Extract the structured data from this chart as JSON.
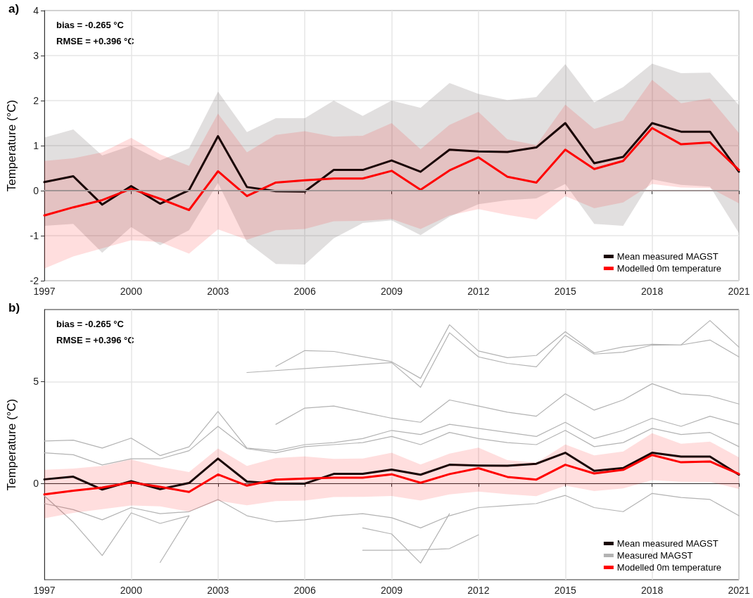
{
  "chart_data": [
    {
      "type": "line",
      "title": "a)",
      "ylabel": "Temperature (°C)",
      "annotations": [
        "bias = -0.265 °C",
        "RMSE = +0.396 °C"
      ],
      "x": [
        1997,
        1998,
        1999,
        2000,
        2001,
        2002,
        2003,
        2004,
        2005,
        2006,
        2007,
        2008,
        2009,
        2010,
        2011,
        2012,
        2013,
        2014,
        2015,
        2016,
        2017,
        2018,
        2019,
        2020,
        2021
      ],
      "series": [
        {
          "name": "Mean measured MAGST",
          "color": "#1a0505",
          "values": [
            0.19,
            0.32,
            -0.31,
            0.1,
            -0.29,
            0.01,
            1.21,
            0.08,
            -0.01,
            -0.02,
            0.46,
            0.46,
            0.67,
            0.42,
            0.91,
            0.87,
            0.86,
            0.96,
            1.5,
            0.61,
            0.75,
            1.5,
            1.31,
            1.31,
            0.42
          ],
          "lower": [
            -0.78,
            -0.74,
            -1.38,
            -0.81,
            -1.21,
            -0.88,
            0.17,
            -1.14,
            -1.63,
            -1.64,
            -1.06,
            -0.72,
            -0.66,
            -0.99,
            -0.58,
            -0.3,
            -0.21,
            -0.17,
            0.15,
            -0.74,
            -0.78,
            0.25,
            0.13,
            0.09,
            -0.94
          ],
          "upper": [
            1.18,
            1.36,
            0.78,
            1.0,
            0.67,
            0.94,
            2.2,
            1.3,
            1.61,
            1.61,
            2.0,
            1.66,
            2.0,
            1.84,
            2.39,
            2.15,
            2.01,
            2.08,
            2.81,
            1.96,
            2.3,
            2.82,
            2.61,
            2.62,
            1.9
          ]
        },
        {
          "name": "Modelled 0m temperature",
          "color": "#ff0000",
          "values": [
            -0.55,
            -0.37,
            -0.21,
            0.04,
            -0.18,
            -0.43,
            0.43,
            -0.12,
            0.18,
            0.23,
            0.27,
            0.27,
            0.44,
            0.02,
            0.45,
            0.74,
            0.31,
            0.18,
            0.91,
            0.48,
            0.66,
            1.39,
            1.03,
            1.07,
            0.46
          ],
          "lower": [
            -1.73,
            -1.46,
            -1.28,
            -1.1,
            -1.14,
            -1.4,
            -0.86,
            -1.09,
            -0.88,
            -0.85,
            -0.68,
            -0.67,
            -0.63,
            -0.85,
            -0.55,
            -0.41,
            -0.54,
            -0.64,
            -0.12,
            -0.39,
            -0.26,
            0.15,
            0.07,
            0.06,
            -0.28
          ],
          "upper": [
            0.66,
            0.72,
            0.85,
            1.17,
            0.81,
            0.55,
            1.71,
            0.85,
            1.24,
            1.32,
            1.2,
            1.22,
            1.5,
            0.92,
            1.46,
            1.75,
            1.14,
            1.01,
            1.91,
            1.37,
            1.56,
            2.46,
            1.94,
            2.05,
            1.28
          ]
        }
      ],
      "xlim": [
        1997,
        2021
      ],
      "xticks": [
        1997,
        2000,
        2003,
        2006,
        2009,
        2012,
        2015,
        2018,
        2021
      ],
      "ylim": [
        -2,
        4
      ],
      "yticks": [
        -2,
        -1,
        0,
        1,
        2,
        3,
        4
      ],
      "ref_lines": [
        {
          "axis": "y",
          "value": 0,
          "color": "#a09494"
        }
      ],
      "grid": true,
      "legend": "bottom right"
    },
    {
      "type": "line",
      "title": "b)",
      "ylabel": "Temperature (°C)",
      "annotations": [
        "bias = -0.265 °C",
        "RMSE = +0.396 °C"
      ],
      "x": [
        1997,
        1998,
        1999,
        2000,
        2001,
        2002,
        2003,
        2004,
        2005,
        2006,
        2007,
        2008,
        2009,
        2010,
        2011,
        2012,
        2013,
        2014,
        2015,
        2016,
        2017,
        2018,
        2019,
        2020,
        2021
      ],
      "series": [
        {
          "name": "Mean measured MAGST",
          "color": "#1a0505",
          "values": [
            0.19,
            0.32,
            -0.31,
            0.1,
            -0.29,
            0.01,
            1.21,
            0.08,
            -0.01,
            -0.02,
            0.46,
            0.46,
            0.67,
            0.42,
            0.91,
            0.87,
            0.86,
            0.96,
            1.5,
            0.61,
            0.75,
            1.5,
            1.31,
            1.31,
            0.42
          ]
        },
        {
          "name": "Measured MAGST",
          "color": "#b3b3b3",
          "values": [
            2.08,
            2.12,
            1.73,
            2.22,
            1.36,
            1.79,
            3.53,
            1.73,
            1.6,
            1.9,
            2.0,
            2.2,
            2.6,
            2.4,
            2.9,
            2.7,
            2.5,
            2.3,
            3.0,
            2.2,
            2.6,
            3.2,
            2.8,
            3.3,
            2.9
          ]
        },
        {
          "color": "#b3b3b3",
          "x": [
            2005,
            2006,
            2007,
            2009,
            2010,
            2011,
            2012,
            2013,
            2014,
            2015,
            2016,
            2017,
            2018,
            2019,
            2020,
            2021
          ],
          "values": [
            5.75,
            6.53,
            6.49,
            5.98,
            5.16,
            7.8,
            6.51,
            6.18,
            6.29,
            7.46,
            6.42,
            6.71,
            6.84,
            6.81,
            8.01,
            6.7
          ]
        },
        {
          "color": "#b3b3b3",
          "x": [
            2004,
            2009,
            2010,
            2011,
            2012,
            2013,
            2014,
            2015,
            2016,
            2017,
            2018,
            2019,
            2020,
            2021
          ],
          "values": [
            5.45,
            5.94,
            4.72,
            7.41,
            6.22,
            5.9,
            5.73,
            7.29,
            6.36,
            6.45,
            6.8,
            6.81,
            7.05,
            6.22
          ]
        },
        {
          "color": "#b3b3b3",
          "x": [
            1997,
            1998,
            1999,
            2000,
            2001,
            2002
          ],
          "values": [
            -0.62,
            -1.92,
            -3.56,
            -1.46,
            -1.98,
            -1.6
          ]
        },
        {
          "color": "#b3b3b3",
          "x": [
            2001,
            2002
          ],
          "values": [
            -3.9,
            -1.61
          ]
        },
        {
          "color": "#b3b3b3",
          "values": [
            1.5,
            1.4,
            0.9,
            1.2,
            1.2,
            1.6,
            2.8,
            1.7,
            1.5,
            1.8,
            1.9,
            2.0,
            2.3,
            1.9,
            2.5,
            2.2,
            2.0,
            1.9,
            2.6,
            1.8,
            2.0,
            2.7,
            2.4,
            2.5,
            1.8
          ]
        },
        {
          "color": "#b3b3b3",
          "values": [
            -1.0,
            -1.3,
            -1.8,
            -1.2,
            -1.5,
            -1.4,
            -0.8,
            -1.6,
            -1.9,
            -1.8,
            -1.6,
            -1.5,
            -1.7,
            -2.2,
            -1.6,
            -1.2,
            -1.1,
            -1.0,
            -0.6,
            -1.2,
            -1.4,
            -0.5,
            -0.7,
            -0.8,
            -1.6
          ]
        },
        {
          "color": "#b3b3b3",
          "x": [
            2008,
            2009,
            2010,
            2011,
            2012
          ],
          "values": [
            -3.3,
            -3.3,
            -3.28,
            -3.22,
            -2.54
          ]
        },
        {
          "color": "#b3b3b3",
          "x": [
            2008,
            2009,
            2010,
            2011
          ],
          "values": [
            -2.2,
            -2.5,
            -3.93,
            -1.5
          ]
        },
        {
          "color": "#b3b3b3",
          "x": [
            2005,
            2006,
            2007,
            2008,
            2009,
            2010,
            2011,
            2012,
            2013,
            2014,
            2015,
            2016,
            2017,
            2018,
            2019,
            2020,
            2021
          ],
          "values": [
            2.9,
            3.7,
            3.8,
            3.5,
            3.2,
            3.0,
            4.1,
            3.8,
            3.5,
            3.3,
            4.4,
            3.6,
            4.1,
            4.9,
            4.4,
            4.3,
            3.9
          ]
        },
        {
          "name": "Modelled 0m temperature",
          "color": "#ff0000",
          "values": [
            -0.55,
            -0.37,
            -0.21,
            0.04,
            -0.18,
            -0.43,
            0.43,
            -0.12,
            0.18,
            0.23,
            0.27,
            0.27,
            0.44,
            0.02,
            0.45,
            0.74,
            0.31,
            0.18,
            0.91,
            0.48,
            0.66,
            1.39,
            1.03,
            1.07,
            0.46
          ],
          "lower": [
            -1.73,
            -1.46,
            -1.28,
            -1.1,
            -1.14,
            -1.4,
            -0.86,
            -1.09,
            -0.88,
            -0.85,
            -0.68,
            -0.67,
            -0.63,
            -0.85,
            -0.55,
            -0.41,
            -0.54,
            -0.64,
            -0.12,
            -0.39,
            -0.26,
            0.15,
            0.07,
            0.06,
            -0.28
          ],
          "upper": [
            0.66,
            0.72,
            0.85,
            1.17,
            0.81,
            0.55,
            1.71,
            0.85,
            1.24,
            1.32,
            1.2,
            1.22,
            1.5,
            0.92,
            1.46,
            1.75,
            1.14,
            1.01,
            1.91,
            1.37,
            1.56,
            2.46,
            1.94,
            2.05,
            1.28
          ]
        }
      ],
      "xlim": [
        1997,
        2021
      ],
      "xticks": [
        1997,
        2000,
        2003,
        2006,
        2009,
        2012,
        2015,
        2018,
        2021
      ],
      "ylim": [
        -4.75,
        8.55
      ],
      "yticks": [
        0,
        5
      ],
      "grid": true,
      "legend": "bottom right"
    }
  ]
}
